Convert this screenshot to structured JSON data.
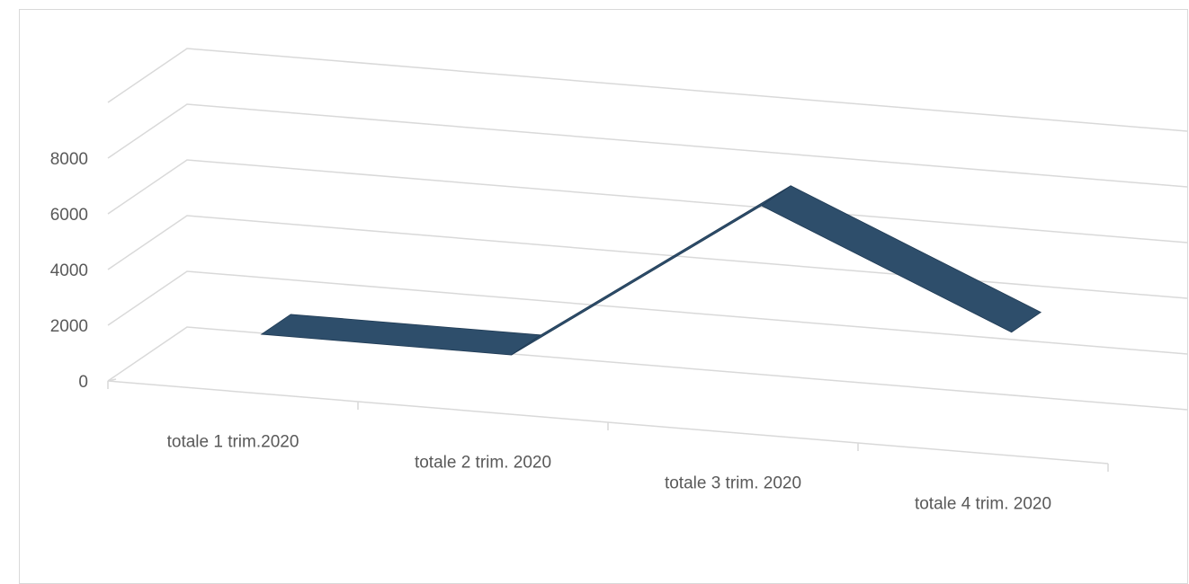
{
  "chart_data": {
    "type": "line",
    "style": "3d-ribbon",
    "categories": [
      "totale 1 trim.2020",
      "totale 2 trim. 2020",
      "totale 3 trim. 2020",
      "totale 4 trim. 2020"
    ],
    "series": [
      {
        "values": [
          1350,
          1350,
          7450,
          3650
        ],
        "color": "#2e4e6b"
      }
    ],
    "yticks": [
      0,
      2000,
      4000,
      6000,
      8000
    ],
    "ylim": [
      0,
      10000
    ],
    "grid": true,
    "legend": "none",
    "gridline_color": "#d9d9d9",
    "axis_text_color": "#595959"
  }
}
